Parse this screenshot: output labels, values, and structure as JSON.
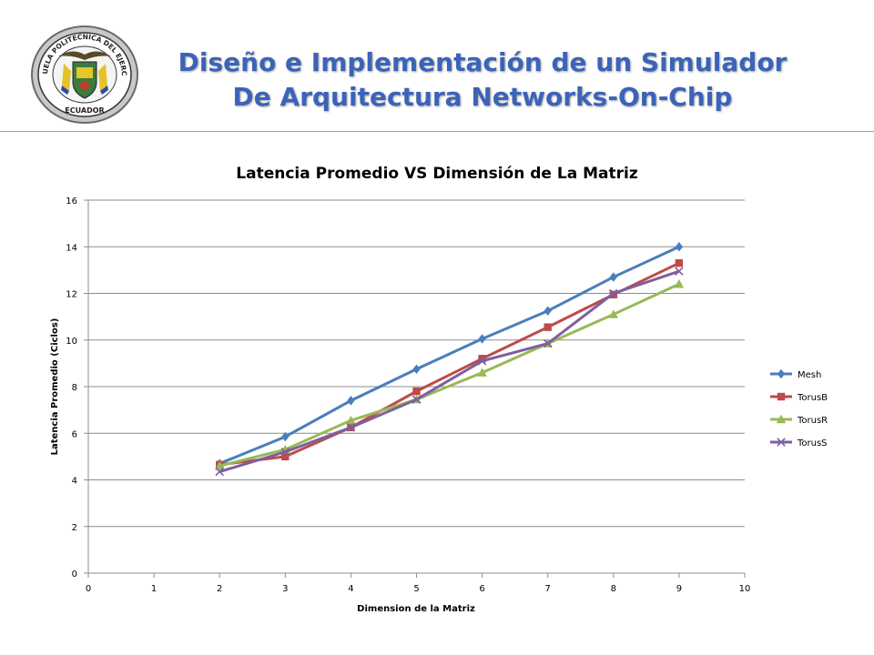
{
  "header": {
    "title_line1": "Diseño e Implementación de un Simulador",
    "title_line2": "De Arquitectura Networks-On-Chip",
    "logo": {
      "icon": "escudo-ejercito-seal-icon",
      "text_top": "ESCUELA POLITECNICA DEL EJERCITO",
      "text_bottom": "ECUADOR"
    }
  },
  "colors": {
    "title": "#3b63b8",
    "mesh": "#4a7ebb",
    "torusb": "#be4b48",
    "torusr": "#98b954",
    "toruss": "#7d5fa0",
    "grid": "#8c8c8c"
  },
  "chart_data": {
    "type": "line",
    "title": "Latencia Promedio VS Dimensión de La Matriz",
    "xlabel": "Dimension de la Matriz",
    "ylabel": "Latencia Promedio (Ciclos)",
    "xlim": [
      0,
      10
    ],
    "ylim": [
      0,
      16
    ],
    "xticks": [
      "0",
      "1",
      "2",
      "3",
      "4",
      "5",
      "6",
      "7",
      "8",
      "9",
      "10"
    ],
    "yticks": [
      "0",
      "2",
      "4",
      "6",
      "8",
      "10",
      "12",
      "14",
      "16"
    ],
    "grid": "horizontal",
    "legend_position": "right",
    "x": [
      2,
      3,
      4,
      5,
      6,
      7,
      8,
      9
    ],
    "series": [
      {
        "name": "Mesh",
        "marker": "diamond",
        "color": "#4a7ebb",
        "values": [
          4.7,
          5.85,
          7.4,
          8.75,
          10.05,
          11.25,
          12.7,
          14.0
        ]
      },
      {
        "name": "TorusB",
        "marker": "square",
        "color": "#be4b48",
        "values": [
          4.65,
          5.0,
          6.25,
          7.8,
          9.2,
          10.55,
          11.95,
          13.3
        ]
      },
      {
        "name": "TorusR",
        "marker": "triangle",
        "color": "#98b954",
        "values": [
          4.6,
          5.3,
          6.55,
          7.45,
          8.6,
          9.85,
          11.1,
          12.4
        ]
      },
      {
        "name": "TorusS",
        "marker": "x",
        "color": "#7d5fa0",
        "values": [
          4.35,
          5.2,
          6.25,
          7.45,
          9.1,
          9.85,
          12.0,
          12.95
        ]
      }
    ]
  }
}
